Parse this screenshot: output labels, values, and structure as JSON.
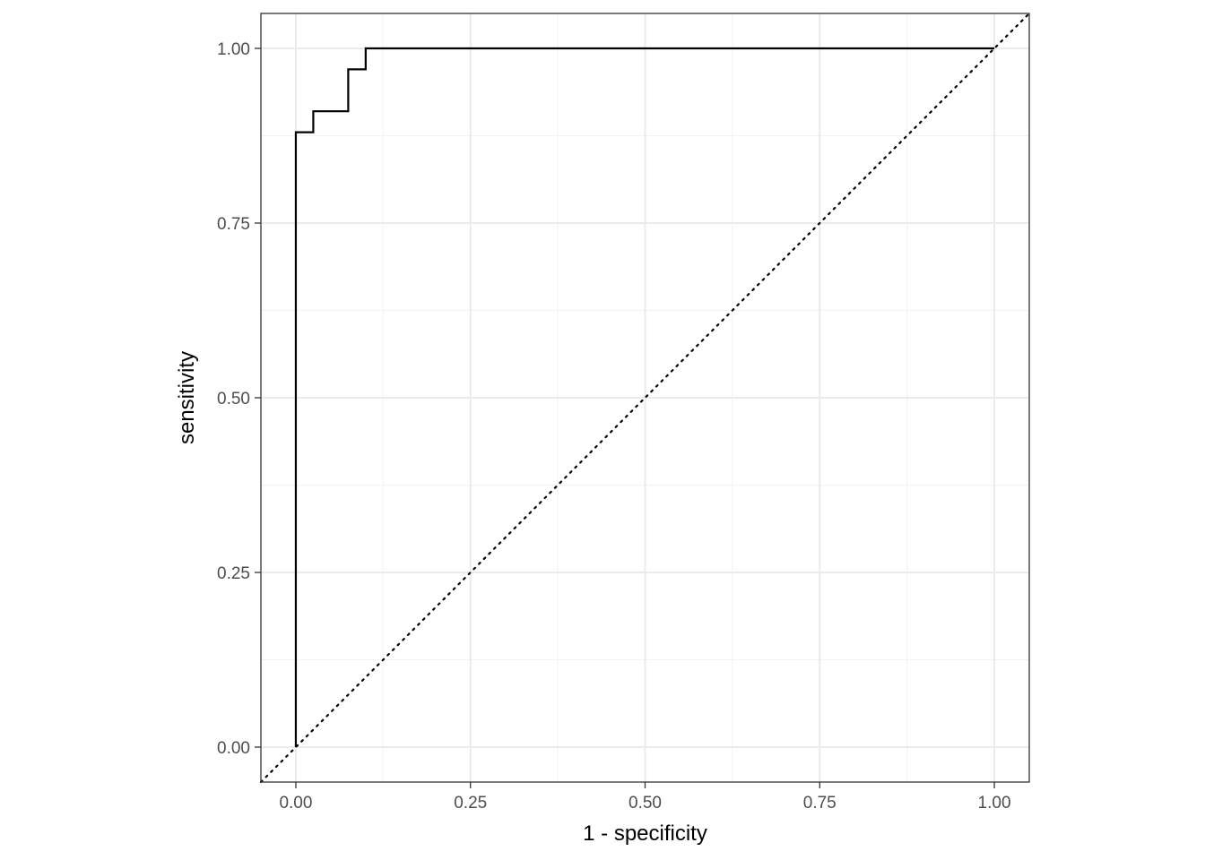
{
  "chart_data": {
    "type": "line",
    "title": "",
    "xlabel": "1 - specificity",
    "ylabel": "sensitivity",
    "xlim": [
      -0.05,
      1.05
    ],
    "ylim": [
      -0.05,
      1.05
    ],
    "x_ticks": [
      "0.00",
      "0.25",
      "0.50",
      "0.75",
      "1.00"
    ],
    "y_ticks": [
      "0.00",
      "0.25",
      "0.50",
      "0.75",
      "1.00"
    ],
    "grid": true,
    "series": [
      {
        "style": "solid-step",
        "color": "#000000",
        "x": [
          0.0,
          0.0,
          0.025,
          0.025,
          0.075,
          0.075,
          0.1,
          0.1,
          1.0
        ],
        "y": [
          0.0,
          0.88,
          0.88,
          0.91,
          0.91,
          0.97,
          0.97,
          1.0,
          1.0
        ]
      },
      {
        "style": "dotted-diagonal",
        "color": "#000000",
        "x": [
          -0.05,
          1.05
        ],
        "y": [
          -0.05,
          1.05
        ]
      }
    ]
  }
}
